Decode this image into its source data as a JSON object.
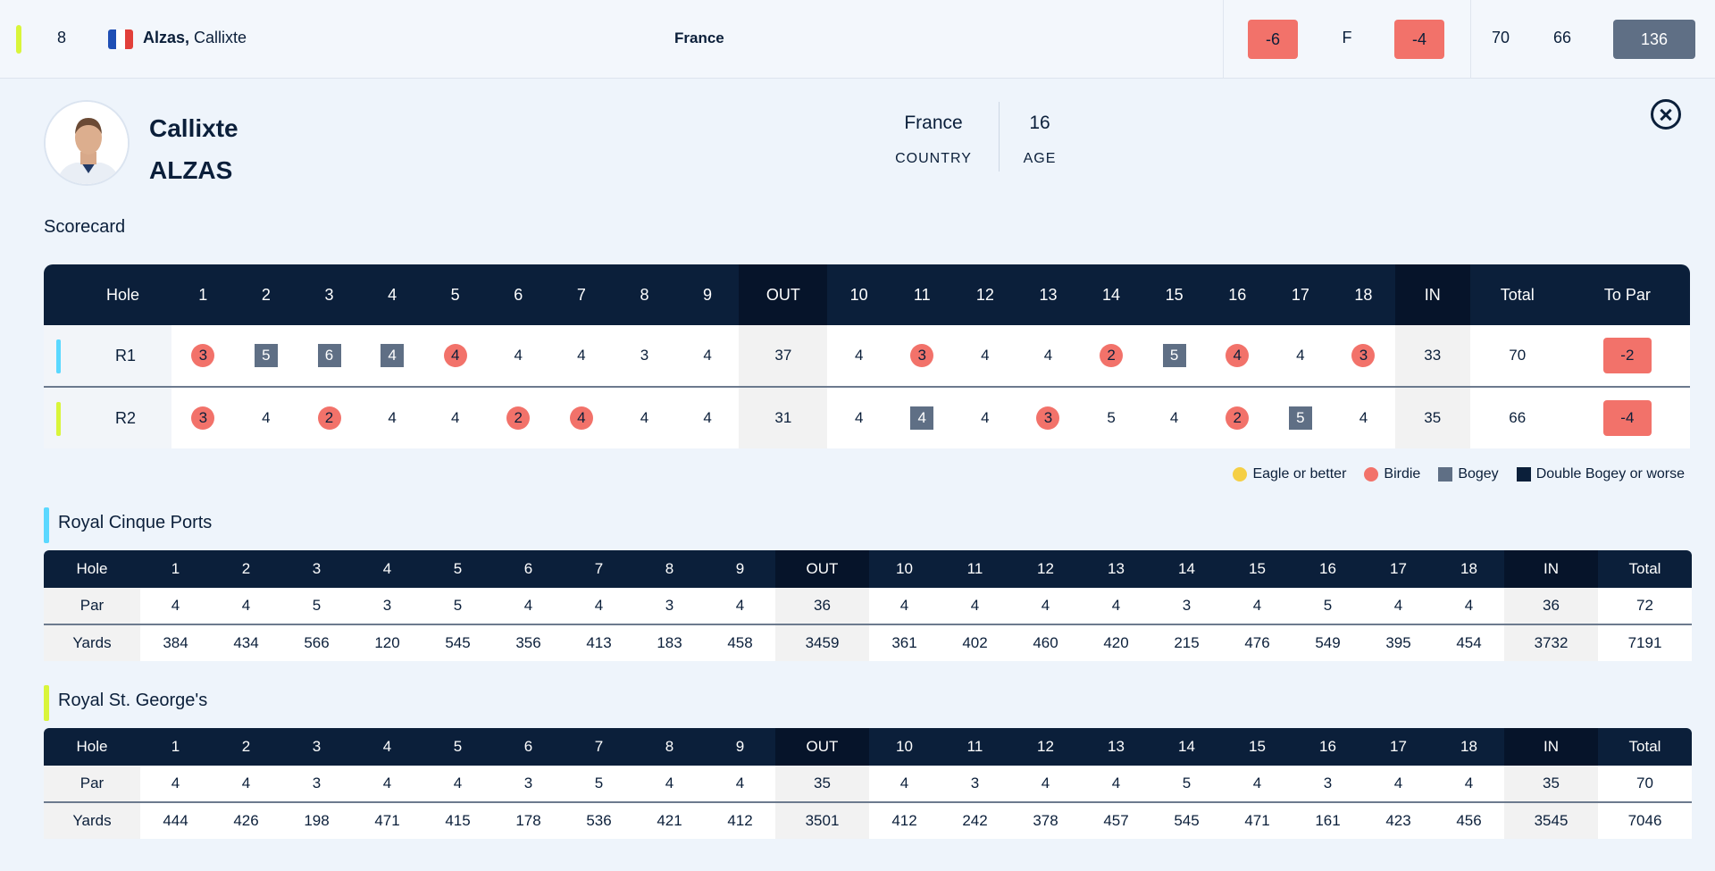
{
  "colors": {
    "round1": "#5ad8ff",
    "round2": "#d9f53a",
    "birdie": "#f2726a",
    "eagle": "#f5cf45",
    "bogey": "#5f6f85",
    "double_bogey": "#0b1f3a",
    "header": "#0b1f3a"
  },
  "leaderboard_row": {
    "position": "8",
    "flag_icon": "france-flag-icon",
    "last_name": "Alzas,",
    "first_name": "Callixte",
    "country": "France",
    "to_par": "-6",
    "thru": "F",
    "today": "-4",
    "r1": "70",
    "r2": "66",
    "total": "136"
  },
  "player": {
    "first_name": "Callixte",
    "last_name": "ALZAS",
    "country": "France",
    "country_label": "COUNTRY",
    "age": "16",
    "age_label": "AGE",
    "avatar_icon": "player-photo"
  },
  "close_icon": "close-circle-icon",
  "scorecard": {
    "title": "Scorecard",
    "headers": [
      "Hole",
      "1",
      "2",
      "3",
      "4",
      "5",
      "6",
      "7",
      "8",
      "9",
      "OUT",
      "10",
      "11",
      "12",
      "13",
      "14",
      "15",
      "16",
      "17",
      "18",
      "IN",
      "Total",
      "To Par"
    ],
    "rounds": [
      {
        "label": "R1",
        "scores": [
          {
            "v": "3",
            "t": "birdie"
          },
          {
            "v": "5",
            "t": "bogey"
          },
          {
            "v": "6",
            "t": "bogey"
          },
          {
            "v": "4",
            "t": "bogey"
          },
          {
            "v": "4",
            "t": "birdie"
          },
          {
            "v": "4",
            "t": ""
          },
          {
            "v": "4",
            "t": ""
          },
          {
            "v": "3",
            "t": ""
          },
          {
            "v": "4",
            "t": ""
          }
        ],
        "out": "37",
        "back": [
          {
            "v": "4",
            "t": ""
          },
          {
            "v": "3",
            "t": "birdie"
          },
          {
            "v": "4",
            "t": ""
          },
          {
            "v": "4",
            "t": ""
          },
          {
            "v": "2",
            "t": "birdie"
          },
          {
            "v": "5",
            "t": "bogey"
          },
          {
            "v": "4",
            "t": "birdie"
          },
          {
            "v": "4",
            "t": ""
          },
          {
            "v": "3",
            "t": "birdie"
          }
        ],
        "in": "33",
        "total": "70",
        "to_par": "-2"
      },
      {
        "label": "R2",
        "scores": [
          {
            "v": "3",
            "t": "birdie"
          },
          {
            "v": "4",
            "t": ""
          },
          {
            "v": "2",
            "t": "birdie"
          },
          {
            "v": "4",
            "t": ""
          },
          {
            "v": "4",
            "t": ""
          },
          {
            "v": "2",
            "t": "birdie"
          },
          {
            "v": "4",
            "t": "birdie"
          },
          {
            "v": "4",
            "t": ""
          },
          {
            "v": "4",
            "t": ""
          }
        ],
        "out": "31",
        "back": [
          {
            "v": "4",
            "t": ""
          },
          {
            "v": "4",
            "t": "bogey"
          },
          {
            "v": "4",
            "t": ""
          },
          {
            "v": "3",
            "t": "birdie"
          },
          {
            "v": "5",
            "t": ""
          },
          {
            "v": "4",
            "t": ""
          },
          {
            "v": "2",
            "t": "birdie"
          },
          {
            "v": "5",
            "t": "bogey"
          },
          {
            "v": "4",
            "t": ""
          }
        ],
        "in": "35",
        "total": "66",
        "to_par": "-4"
      }
    ]
  },
  "legend": [
    {
      "label": "Eagle or better",
      "t": "eagle"
    },
    {
      "label": "Birdie",
      "t": "birdie"
    },
    {
      "label": "Bogey",
      "t": "bogey"
    },
    {
      "label": "Double Bogey or worse",
      "t": "dbogey"
    }
  ],
  "courses": [
    {
      "name": "Royal Cinque Ports",
      "headers": [
        "Hole",
        "1",
        "2",
        "3",
        "4",
        "5",
        "6",
        "7",
        "8",
        "9",
        "OUT",
        "10",
        "11",
        "12",
        "13",
        "14",
        "15",
        "16",
        "17",
        "18",
        "IN",
        "Total"
      ],
      "par_label": "Par",
      "par": [
        "4",
        "4",
        "5",
        "3",
        "5",
        "4",
        "4",
        "3",
        "4",
        "36",
        "4",
        "4",
        "4",
        "4",
        "3",
        "4",
        "5",
        "4",
        "4",
        "36",
        "72"
      ],
      "yards_label": "Yards",
      "yards": [
        "384",
        "434",
        "566",
        "120",
        "545",
        "356",
        "413",
        "183",
        "458",
        "3459",
        "361",
        "402",
        "460",
        "420",
        "215",
        "476",
        "549",
        "395",
        "454",
        "3732",
        "7191"
      ]
    },
    {
      "name": "Royal St. George's",
      "headers": [
        "Hole",
        "1",
        "2",
        "3",
        "4",
        "5",
        "6",
        "7",
        "8",
        "9",
        "OUT",
        "10",
        "11",
        "12",
        "13",
        "14",
        "15",
        "16",
        "17",
        "18",
        "IN",
        "Total"
      ],
      "par_label": "Par",
      "par": [
        "4",
        "4",
        "3",
        "4",
        "4",
        "3",
        "5",
        "4",
        "4",
        "35",
        "4",
        "3",
        "4",
        "4",
        "5",
        "4",
        "3",
        "4",
        "4",
        "35",
        "70"
      ],
      "yards_label": "Yards",
      "yards": [
        "444",
        "426",
        "198",
        "471",
        "415",
        "178",
        "536",
        "421",
        "412",
        "3501",
        "412",
        "242",
        "378",
        "457",
        "545",
        "471",
        "161",
        "423",
        "456",
        "3545",
        "7046"
      ]
    }
  ]
}
